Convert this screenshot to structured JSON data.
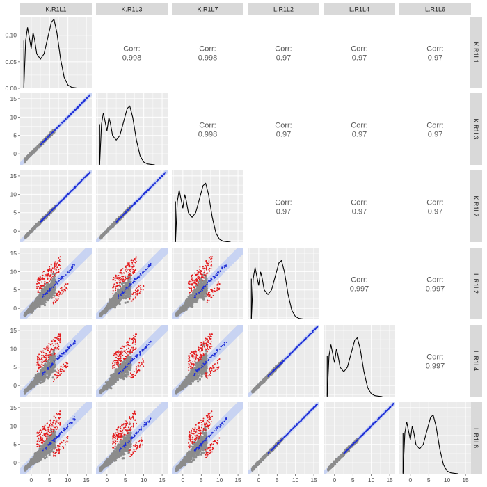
{
  "chart_data": {
    "type": "scatter-matrix",
    "title": "",
    "variables": [
      "K.R1L1",
      "K.R1L3",
      "K.R1L7",
      "L.R1L2",
      "L.R1L4",
      "L.R1L6"
    ],
    "corr_label": "Corr:",
    "correlations": [
      {
        "row": 0,
        "col": 1,
        "value": "0.998"
      },
      {
        "row": 0,
        "col": 2,
        "value": "0.998"
      },
      {
        "row": 0,
        "col": 3,
        "value": "0.97"
      },
      {
        "row": 0,
        "col": 4,
        "value": "0.97"
      },
      {
        "row": 0,
        "col": 5,
        "value": "0.97"
      },
      {
        "row": 1,
        "col": 2,
        "value": "0.998"
      },
      {
        "row": 1,
        "col": 3,
        "value": "0.97"
      },
      {
        "row": 1,
        "col": 4,
        "value": "0.97"
      },
      {
        "row": 1,
        "col": 5,
        "value": "0.97"
      },
      {
        "row": 2,
        "col": 3,
        "value": "0.97"
      },
      {
        "row": 2,
        "col": 4,
        "value": "0.97"
      },
      {
        "row": 2,
        "col": 5,
        "value": "0.97"
      },
      {
        "row": 3,
        "col": 4,
        "value": "0.997"
      },
      {
        "row": 3,
        "col": 5,
        "value": "0.997"
      },
      {
        "row": 4,
        "col": 5,
        "value": "0.997"
      }
    ],
    "x_range": [
      -3,
      16.5
    ],
    "y_range": [
      -3,
      16.5
    ],
    "x_ticks": [
      "0",
      "5",
      "10",
      "15"
    ],
    "y_ticks": [
      "0",
      "5",
      "10",
      "15"
    ],
    "density_range": [
      0,
      0.135
    ],
    "density_ticks": [
      "0.00",
      "0.05",
      "0.10"
    ],
    "density_curve": [
      [
        -2,
        0.002
      ],
      [
        -1.5,
        0.09
      ],
      [
        -1,
        0.115
      ],
      [
        -0.5,
        0.095
      ],
      [
        0,
        0.075
      ],
      [
        0.3,
        0.093
      ],
      [
        0.5,
        0.105
      ],
      [
        0.9,
        0.093
      ],
      [
        1.5,
        0.065
      ],
      [
        2.5,
        0.055
      ],
      [
        3.5,
        0.065
      ],
      [
        4.5,
        0.095
      ],
      [
        5.5,
        0.125
      ],
      [
        6.2,
        0.13
      ],
      [
        7,
        0.105
      ],
      [
        8,
        0.055
      ],
      [
        9,
        0.02
      ],
      [
        10,
        0.006
      ],
      [
        11,
        0.002
      ],
      [
        12,
        0.001
      ],
      [
        13,
        0
      ]
    ],
    "grid": true,
    "colors": {
      "panel_background": "#ebebeb",
      "grid": "#ffffff",
      "strip_background": "#d9d9d9",
      "points_bulk": "#8c8c8c",
      "points_diagonal": "#1f2fd6",
      "points_outlier": "#e31a1c",
      "confidence_band": "#c6d2f2",
      "density_line": "#000000"
    }
  }
}
